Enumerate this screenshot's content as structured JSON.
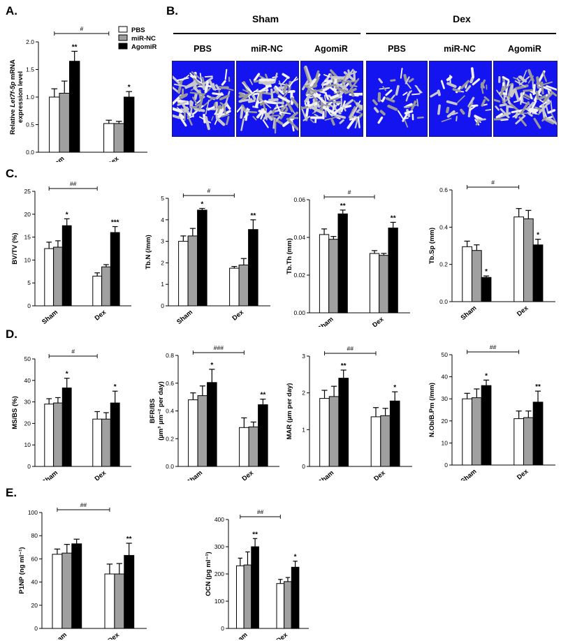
{
  "panel_letters": {
    "a": "A.",
    "b": "B.",
    "c": "C.",
    "d": "D.",
    "e": "E."
  },
  "legend": {
    "pbs": "PBS",
    "mirnc": "miR-NC",
    "agomir": "AgomiR"
  },
  "series_colors": {
    "PBS": "#ffffff",
    "miR-NC": "#a0a0a0",
    "AgomiR": "#000000"
  },
  "panel_b": {
    "groups": [
      {
        "title": "Sham",
        "labels": [
          "PBS",
          "miR-NC",
          "AgomiR"
        ]
      },
      {
        "title": "Dex",
        "labels": [
          "PBS",
          "miR-NC",
          "AgomiR"
        ]
      }
    ],
    "image_background": "#1414f0",
    "image_content": "3D micro-CT reconstructions of trabecular bone (grey) on blue background"
  },
  "chart_data": [
    {
      "id": "A",
      "type": "bar",
      "ylabel_line1_pre": "Relative ",
      "ylabel_line1_italic": "Let7f-5p",
      "ylabel_line1_post": " mRNA",
      "ylabel_line2": "expression level",
      "categories": [
        "Sham",
        "Dex"
      ],
      "ylim": [
        0,
        2.0
      ],
      "ticks": [
        "0.0",
        "0.5",
        "1.0",
        "1.5",
        "2.0"
      ],
      "series": [
        {
          "name": "PBS",
          "values": [
            1.0,
            0.52
          ],
          "errors": [
            0.15,
            0.06
          ]
        },
        {
          "name": "miR-NC",
          "values": [
            1.07,
            0.52
          ],
          "errors": [
            0.22,
            0.04
          ]
        },
        {
          "name": "AgomiR",
          "values": [
            1.65,
            1.0
          ],
          "errors": [
            0.18,
            0.1
          ]
        }
      ],
      "sig": [
        [
          "",
          "",
          "**"
        ],
        [
          "",
          "",
          "*"
        ]
      ],
      "bracket": "#",
      "legend_position": "top-right"
    },
    {
      "id": "C1",
      "type": "bar",
      "ylabel": "BV/TV (%)",
      "categories": [
        "Sham",
        "Dex"
      ],
      "ylim": [
        0,
        25
      ],
      "ticks": [
        "0",
        "5",
        "10",
        "15",
        "20",
        "25"
      ],
      "series": [
        {
          "name": "PBS",
          "values": [
            12.5,
            6.5
          ],
          "errors": [
            1.4,
            0.7
          ]
        },
        {
          "name": "miR-NC",
          "values": [
            12.8,
            8.5
          ],
          "errors": [
            1.4,
            0.5
          ]
        },
        {
          "name": "AgomiR",
          "values": [
            17.5,
            16.0
          ],
          "errors": [
            1.5,
            1.3
          ]
        }
      ],
      "sig": [
        [
          "",
          "",
          "*"
        ],
        [
          "",
          "",
          "***"
        ]
      ],
      "bracket": "##"
    },
    {
      "id": "C2",
      "type": "bar",
      "ylabel": "Tb.N (/mm)",
      "categories": [
        "Sham",
        "Dex"
      ],
      "ylim": [
        0,
        5
      ],
      "ticks": [
        "0",
        "1",
        "2",
        "3",
        "4",
        "5"
      ],
      "series": [
        {
          "name": "PBS",
          "values": [
            3.0,
            1.75
          ],
          "errors": [
            0.25,
            0.08
          ]
        },
        {
          "name": "miR-NC",
          "values": [
            3.25,
            1.9
          ],
          "errors": [
            0.35,
            0.3
          ]
        },
        {
          "name": "AgomiR",
          "values": [
            4.45,
            3.55
          ],
          "errors": [
            0.08,
            0.45
          ]
        }
      ],
      "sig": [
        [
          "",
          "",
          "*"
        ],
        [
          "",
          "",
          "**"
        ]
      ],
      "bracket": "#"
    },
    {
      "id": "C3",
      "type": "bar",
      "ylabel": "Tb.Th (mm)",
      "categories": [
        "Sham",
        "Dex"
      ],
      "ylim": [
        0,
        0.06
      ],
      "ticks": [
        "0.00",
        "0.02",
        "0.04",
        "0.06"
      ],
      "series": [
        {
          "name": "PBS",
          "values": [
            0.0415,
            0.0315
          ],
          "errors": [
            0.003,
            0.0015
          ]
        },
        {
          "name": "miR-NC",
          "values": [
            0.039,
            0.0305
          ],
          "errors": [
            0.0015,
            0.001
          ]
        },
        {
          "name": "AgomiR",
          "values": [
            0.0525,
            0.045
          ],
          "errors": [
            0.002,
            0.003
          ]
        }
      ],
      "sig": [
        [
          "",
          "",
          "**"
        ],
        [
          "",
          "",
          "**"
        ]
      ],
      "bracket": "#"
    },
    {
      "id": "C4",
      "type": "bar",
      "ylabel": "Tb.Sp (mm)",
      "categories": [
        "Sham",
        "Dex"
      ],
      "ylim": [
        0,
        0.6
      ],
      "ticks": [
        "0.0",
        "0.2",
        "0.4",
        "0.6"
      ],
      "series": [
        {
          "name": "PBS",
          "values": [
            0.295,
            0.455
          ],
          "errors": [
            0.03,
            0.045
          ]
        },
        {
          "name": "miR-NC",
          "values": [
            0.275,
            0.445
          ],
          "errors": [
            0.03,
            0.045
          ]
        },
        {
          "name": "AgomiR",
          "values": [
            0.13,
            0.305
          ],
          "errors": [
            0.008,
            0.03
          ]
        }
      ],
      "sig": [
        [
          "",
          "",
          "*"
        ],
        [
          "",
          "",
          "*"
        ]
      ],
      "bracket": "#"
    },
    {
      "id": "D1",
      "type": "bar",
      "ylabel": "MS/BS (%)",
      "categories": [
        "Sham",
        "Dex"
      ],
      "ylim": [
        0,
        50
      ],
      "ticks": [
        "0",
        "10",
        "20",
        "30",
        "40",
        "50"
      ],
      "series": [
        {
          "name": "PBS",
          "values": [
            29.0,
            22.0
          ],
          "errors": [
            2.5,
            3.5
          ]
        },
        {
          "name": "miR-NC",
          "values": [
            29.5,
            22.0
          ],
          "errors": [
            2.5,
            3.0
          ]
        },
        {
          "name": "AgomiR",
          "values": [
            36.5,
            29.5
          ],
          "errors": [
            4.5,
            5.5
          ]
        }
      ],
      "sig": [
        [
          "",
          "",
          "*"
        ],
        [
          "",
          "",
          "*"
        ]
      ],
      "bracket": "#"
    },
    {
      "id": "D2",
      "type": "bar",
      "ylabel": "BFR/BS",
      "ylabel2": "(µm³ µm⁻² per day)",
      "categories": [
        "Sham",
        "Dex"
      ],
      "ylim": [
        0,
        0.8
      ],
      "ticks": [
        "0.0",
        "0.2",
        "0.4",
        "0.6",
        "0.8"
      ],
      "series": [
        {
          "name": "PBS",
          "values": [
            0.48,
            0.28
          ],
          "errors": [
            0.05,
            0.07
          ]
        },
        {
          "name": "miR-NC",
          "values": [
            0.51,
            0.285
          ],
          "errors": [
            0.07,
            0.035
          ]
        },
        {
          "name": "AgomiR",
          "values": [
            0.605,
            0.445
          ],
          "errors": [
            0.095,
            0.04
          ]
        }
      ],
      "sig": [
        [
          "",
          "",
          "*"
        ],
        [
          "",
          "",
          "**"
        ]
      ],
      "bracket": "###"
    },
    {
      "id": "D3",
      "type": "bar",
      "ylabel": "MAR (µm per day)",
      "categories": [
        "Sham",
        "Dex"
      ],
      "ylim": [
        0,
        3
      ],
      "ticks": [
        "0",
        "1",
        "2",
        "3"
      ],
      "series": [
        {
          "name": "PBS",
          "values": [
            1.85,
            1.35
          ],
          "errors": [
            0.22,
            0.25
          ]
        },
        {
          "name": "miR-NC",
          "values": [
            1.9,
            1.38
          ],
          "errors": [
            0.28,
            0.2
          ]
        },
        {
          "name": "AgomiR",
          "values": [
            2.4,
            1.78
          ],
          "errors": [
            0.22,
            0.25
          ]
        }
      ],
      "sig": [
        [
          "",
          "",
          "**"
        ],
        [
          "",
          "",
          "*"
        ]
      ],
      "bracket": "##"
    },
    {
      "id": "D4",
      "type": "bar",
      "ylabel": "N.Ob/B.Pm (/mm)",
      "categories": [
        "Sham",
        "Dex"
      ],
      "ylim": [
        0,
        50
      ],
      "ticks": [
        "0",
        "10",
        "20",
        "30",
        "40",
        "50"
      ],
      "series": [
        {
          "name": "PBS",
          "values": [
            30.0,
            21.0
          ],
          "errors": [
            2.5,
            3.5
          ]
        },
        {
          "name": "miR-NC",
          "values": [
            30.5,
            21.5
          ],
          "errors": [
            4.0,
            3.0
          ]
        },
        {
          "name": "AgomiR",
          "values": [
            36.0,
            28.5
          ],
          "errors": [
            2.5,
            5.0
          ]
        }
      ],
      "sig": [
        [
          "",
          "",
          "*"
        ],
        [
          "",
          "",
          "**"
        ]
      ],
      "bracket": "##"
    },
    {
      "id": "E1",
      "type": "bar",
      "ylabel": "P1NP (ng ml⁻¹)",
      "categories": [
        "Sham",
        "Dex"
      ],
      "ylim": [
        0,
        100
      ],
      "ticks": [
        "0",
        "20",
        "40",
        "60",
        "80",
        "100"
      ],
      "series": [
        {
          "name": "PBS",
          "values": [
            64.0,
            47.0
          ],
          "errors": [
            4.5,
            8.5
          ]
        },
        {
          "name": "miR-NC",
          "values": [
            65.0,
            47.0
          ],
          "errors": [
            7.5,
            9.0
          ]
        },
        {
          "name": "AgomiR",
          "values": [
            73.0,
            63.0
          ],
          "errors": [
            4.0,
            10.5
          ]
        }
      ],
      "sig": [
        [
          "",
          "",
          ""
        ],
        [
          "",
          "",
          "**"
        ]
      ],
      "bracket": "##"
    },
    {
      "id": "E2",
      "type": "bar",
      "ylabel": "OCN (pg ml⁻¹)",
      "categories": [
        "Sham",
        "Dex"
      ],
      "ylim": [
        0,
        400
      ],
      "ticks": [
        "0",
        "100",
        "200",
        "300",
        "400"
      ],
      "series": [
        {
          "name": "PBS",
          "values": [
            230.0,
            165.0
          ],
          "errors": [
            28.0,
            15.0
          ]
        },
        {
          "name": "miR-NC",
          "values": [
            233.0,
            172.0
          ],
          "errors": [
            48.0,
            15.0
          ]
        },
        {
          "name": "AgomiR",
          "values": [
            300.0,
            225.0
          ],
          "errors": [
            30.0,
            22.0
          ]
        }
      ],
      "sig": [
        [
          "",
          "",
          "**"
        ],
        [
          "",
          "",
          "*"
        ]
      ],
      "bracket": "##"
    }
  ]
}
